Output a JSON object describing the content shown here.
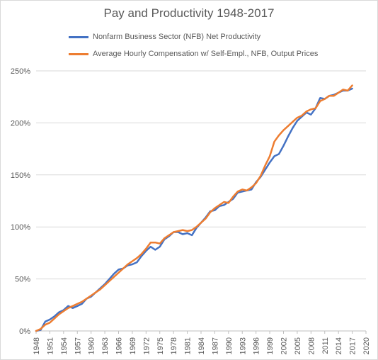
{
  "chart_data": {
    "type": "line",
    "title": "Pay and Productivity 1948-2017",
    "xlabel": "",
    "ylabel": "",
    "xlim": [
      1948,
      2020
    ],
    "ylim": [
      0,
      250
    ],
    "y_tick_format": "percent",
    "x_ticks": [
      "1948",
      "1951",
      "1954",
      "1957",
      "1960",
      "1963",
      "1966",
      "1969",
      "1972",
      "1975",
      "1978",
      "1981",
      "1984",
      "1987",
      "1990",
      "1993",
      "1996",
      "1999",
      "2002",
      "2005",
      "2008",
      "2011",
      "2014",
      "2017",
      "2020"
    ],
    "y_ticks": [
      "0%",
      "50%",
      "100%",
      "150%",
      "200%",
      "250%"
    ],
    "legend_placement": "top",
    "grid": "horizontal",
    "x": [
      1948,
      1949,
      1950,
      1951,
      1952,
      1953,
      1954,
      1955,
      1956,
      1957,
      1958,
      1959,
      1960,
      1961,
      1962,
      1963,
      1964,
      1965,
      1966,
      1967,
      1968,
      1969,
      1970,
      1971,
      1972,
      1973,
      1974,
      1975,
      1976,
      1977,
      1978,
      1979,
      1980,
      1981,
      1982,
      1983,
      1984,
      1985,
      1986,
      1987,
      1988,
      1989,
      1990,
      1991,
      1992,
      1993,
      1994,
      1995,
      1996,
      1997,
      1998,
      1999,
      2000,
      2001,
      2002,
      2003,
      2004,
      2005,
      2006,
      2007,
      2008,
      2009,
      2010,
      2011,
      2012,
      2013,
      2014,
      2015,
      2016,
      2017
    ],
    "series": [
      {
        "name": "Nonfarm Business Sector (NFB) Net Productivity",
        "color": "#4472c4",
        "values": [
          0,
          1,
          9,
          11,
          14,
          18,
          20,
          24,
          22,
          24,
          26,
          31,
          33,
          37,
          41,
          45,
          50,
          55,
          59,
          60,
          63,
          64,
          66,
          72,
          77,
          81,
          78,
          81,
          88,
          91,
          95,
          95,
          93,
          94,
          92,
          99,
          104,
          109,
          115,
          116,
          120,
          121,
          124,
          127,
          133,
          134,
          135,
          136,
          143,
          148,
          155,
          162,
          168,
          170,
          178,
          187,
          195,
          202,
          206,
          210,
          208,
          214,
          224,
          223,
          226,
          227,
          229,
          231,
          231,
          233
        ]
      },
      {
        "name": "Average Hourly Compensation w/ Self-Empl., NFB, Output Prices",
        "color": "#ed7d31",
        "values": [
          0,
          2,
          6,
          8,
          12,
          16,
          19,
          22,
          24,
          26,
          28,
          31,
          34,
          37,
          40,
          44,
          48,
          52,
          56,
          60,
          64,
          67,
          70,
          74,
          79,
          85,
          85,
          84,
          89,
          92,
          95,
          96,
          97,
          96,
          97,
          100,
          104,
          108,
          114,
          118,
          121,
          124,
          123,
          129,
          134,
          136,
          135,
          138,
          142,
          149,
          159,
          168,
          182,
          188,
          193,
          197,
          201,
          205,
          207,
          211,
          213,
          214,
          221,
          223,
          226,
          226,
          229,
          232,
          231,
          236
        ]
      }
    ]
  }
}
